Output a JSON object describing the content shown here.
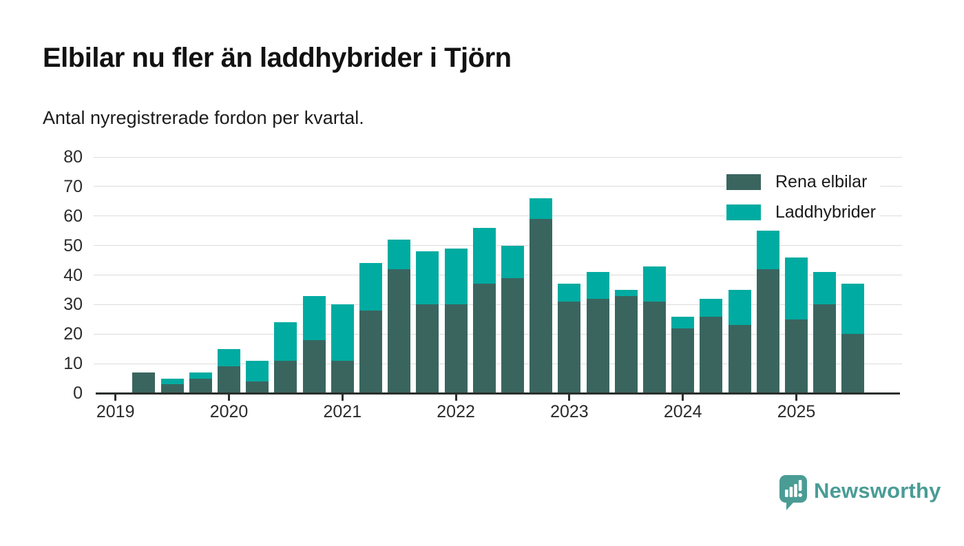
{
  "title": "Elbilar nu fler än laddhybrider i Tjörn",
  "subtitle": "Antal nyregistrerade fordon per kvartal.",
  "legend": {
    "items": [
      {
        "label": "Rena elbilar",
        "color": "#3a655f"
      },
      {
        "label": "Laddhybrider",
        "color": "#00aba1"
      }
    ]
  },
  "footer": {
    "brand": "Newsworthy",
    "brand_color": "#4a9c95",
    "logo_icon": "newsworthy-speech-bubble-bar-chart-icon"
  },
  "chart_data": {
    "type": "bar",
    "stacked": true,
    "title": "Elbilar nu fler än laddhybrider i Tjörn",
    "subtitle": "Antal nyregistrerade fordon per kvartal.",
    "xlabel": "",
    "ylabel": "",
    "ylim": [
      0,
      80
    ],
    "yticks": [
      0,
      10,
      20,
      30,
      40,
      50,
      60,
      70,
      80
    ],
    "grid": true,
    "legend_position": "top-right",
    "year_ticks": [
      "2019",
      "2020",
      "2021",
      "2022",
      "2023",
      "2024",
      "2025"
    ],
    "categories": [
      "2019 K2",
      "2019 K3",
      "2019 K4",
      "2020 K1",
      "2020 K2",
      "2020 K3",
      "2020 K4",
      "2021 K1",
      "2021 K2",
      "2021 K3",
      "2021 K4",
      "2022 K1",
      "2022 K2",
      "2022 K3",
      "2022 K4",
      "2023 K1",
      "2023 K2",
      "2023 K3",
      "2023 K4",
      "2024 K1",
      "2024 K2",
      "2024 K3",
      "2024 K4",
      "2025 K1",
      "2025 K2",
      "2025 K3"
    ],
    "series": [
      {
        "name": "Rena elbilar",
        "color": "#3a655f",
        "values": [
          7,
          3,
          5,
          9,
          4,
          11,
          18,
          11,
          28,
          42,
          30,
          30,
          37,
          39,
          59,
          31,
          32,
          33,
          31,
          22,
          26,
          23,
          42,
          25,
          30,
          20
        ]
      },
      {
        "name": "Laddhybrider",
        "color": "#00aba1",
        "values": [
          0,
          2,
          2,
          6,
          7,
          13,
          15,
          19,
          16,
          10,
          18,
          19,
          19,
          11,
          7,
          6,
          9,
          2,
          12,
          4,
          6,
          12,
          13,
          21,
          11,
          17
        ]
      }
    ],
    "stack_totals": [
      7,
      5,
      7,
      15,
      11,
      24,
      33,
      30,
      44,
      52,
      48,
      49,
      56,
      50,
      66,
      37,
      41,
      35,
      43,
      26,
      32,
      35,
      55,
      46,
      41,
      37
    ]
  }
}
